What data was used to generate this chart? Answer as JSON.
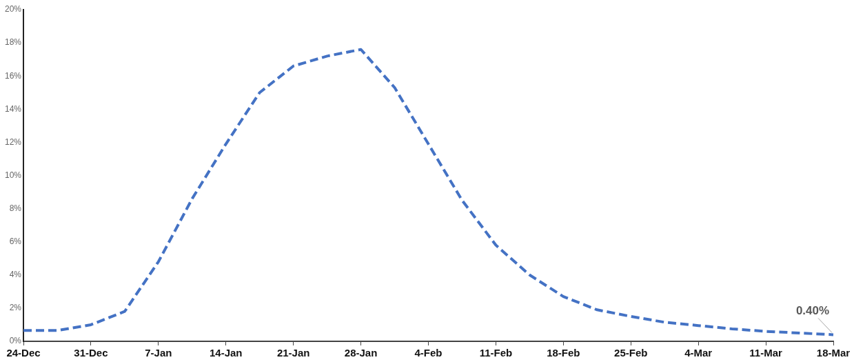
{
  "chart_data": {
    "type": "line",
    "categories": [
      "24-Dec",
      null,
      "31-Dec",
      null,
      "7-Jan",
      null,
      "14-Jan",
      null,
      "21-Jan",
      null,
      "28-Jan",
      null,
      "4-Feb",
      null,
      "11-Feb",
      null,
      "18-Feb",
      null,
      "25-Feb",
      null,
      "4-Mar",
      null,
      "11-Mar",
      null,
      "18-Mar"
    ],
    "series": [
      {
        "color": "#4472c4",
        "values": [
          0.65,
          0.65,
          1.0,
          1.8,
          4.8,
          8.6,
          11.9,
          15.0,
          16.6,
          17.2,
          17.6,
          15.3,
          11.9,
          8.5,
          5.8,
          4.0,
          2.7,
          1.9,
          1.5,
          1.15,
          0.95,
          0.75,
          0.6,
          0.5,
          0.4
        ]
      }
    ],
    "ylim": [
      0,
      20
    ],
    "yticks": [
      {
        "value": 0,
        "label": "0%"
      },
      {
        "value": 2,
        "label": "2%"
      },
      {
        "value": 4,
        "label": "4%"
      },
      {
        "value": 6,
        "label": "6%"
      },
      {
        "value": 8,
        "label": "8%"
      },
      {
        "value": 10,
        "label": "10%"
      },
      {
        "value": 12,
        "label": "12%"
      },
      {
        "value": 14,
        "label": "14%"
      },
      {
        "value": 16,
        "label": "16%"
      },
      {
        "value": 18,
        "label": "18%"
      },
      {
        "value": 20,
        "label": "20%"
      }
    ],
    "annotations": [
      {
        "text": "0.40%",
        "x": "18-Mar",
        "y": 0.4
      }
    ],
    "grid": false,
    "legend": false,
    "marker": "none",
    "line_style": "dashed"
  }
}
